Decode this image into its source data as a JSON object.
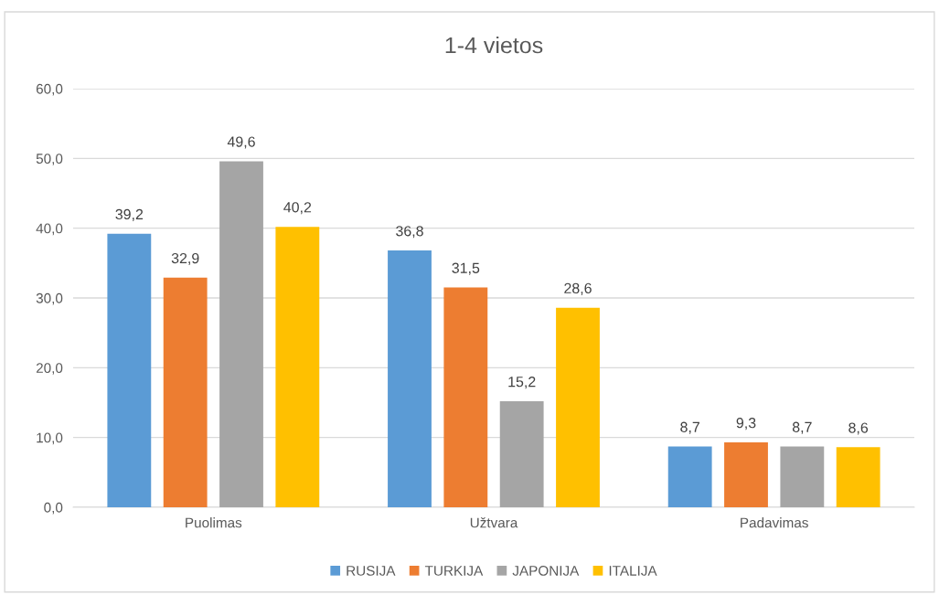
{
  "chart_data": {
    "type": "bar",
    "title": "1-4 vietos",
    "categories": [
      "Puolimas",
      "Užtvara",
      "Padavimas"
    ],
    "series": [
      {
        "name": "RUSIJA",
        "color": "#5b9bd5",
        "values": [
          39.2,
          36.8,
          8.7
        ],
        "value_labels": [
          "39,2",
          "36,8",
          "8,7"
        ]
      },
      {
        "name": "TURKIJA",
        "color": "#ed7d31",
        "values": [
          32.9,
          31.5,
          9.3
        ],
        "value_labels": [
          "32,9",
          "31,5",
          "9,3"
        ]
      },
      {
        "name": "JAPONIJA",
        "color": "#a5a5a5",
        "values": [
          49.6,
          15.2,
          8.7
        ],
        "value_labels": [
          "49,6",
          "15,2",
          "8,7"
        ]
      },
      {
        "name": "ITALIJA",
        "color": "#ffc000",
        "values": [
          40.2,
          28.6,
          8.6
        ],
        "value_labels": [
          "40,2",
          "28,6",
          "8,6"
        ]
      }
    ],
    "ylim": [
      0,
      60
    ],
    "yticks": [
      {
        "value": 0,
        "label": "0,0"
      },
      {
        "value": 10,
        "label": "10,0"
      },
      {
        "value": 20,
        "label": "20,0"
      },
      {
        "value": 30,
        "label": "30,0"
      },
      {
        "value": 40,
        "label": "40,0"
      },
      {
        "value": 50,
        "label": "50,0"
      },
      {
        "value": 60,
        "label": "60,0"
      }
    ],
    "grid": "y",
    "legend": "bottom"
  }
}
